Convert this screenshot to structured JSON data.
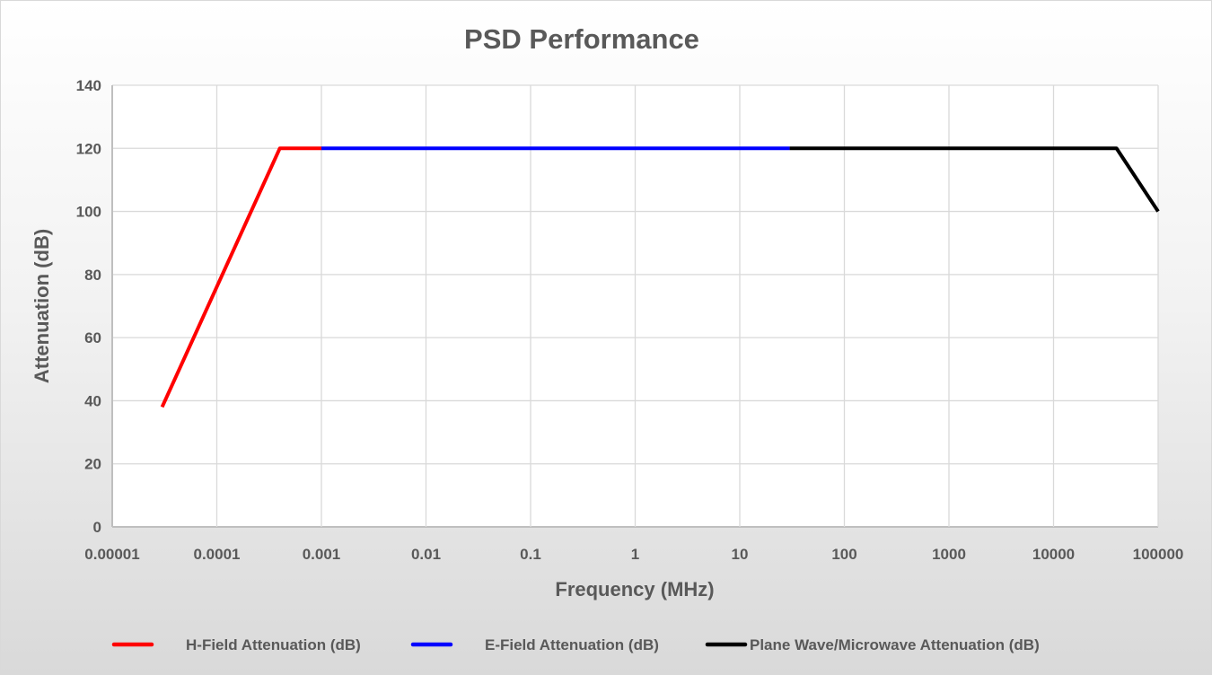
{
  "chart_data": {
    "type": "line",
    "title": "PSD Performance",
    "xlabel": "Frequency (MHz)",
    "ylabel": "Attenuation (dB)",
    "xscale": "log",
    "xlim": [
      1e-05,
      100000
    ],
    "ylim": [
      0,
      140
    ],
    "x_ticks": [
      "0.00001",
      "0.0001",
      "0.001",
      "0.01",
      "0.1",
      "1",
      "10",
      "100",
      "1000",
      "10000",
      "100000"
    ],
    "y_ticks": [
      "0",
      "20",
      "40",
      "60",
      "80",
      "100",
      "120",
      "140"
    ],
    "grid": true,
    "legend_position": "bottom",
    "series": [
      {
        "name": "H-Field Attenuation (dB)",
        "color": "#ff0000",
        "x": [
          3e-05,
          0.0004,
          0.001
        ],
        "y": [
          38,
          120,
          120
        ]
      },
      {
        "name": "E-Field Attenuation (dB)",
        "color": "#0000ff",
        "x": [
          0.001,
          30
        ],
        "y": [
          120,
          120
        ]
      },
      {
        "name": "Plane Wave/Microwave Attenuation (dB)",
        "color": "#000000",
        "x": [
          30,
          40000,
          100000
        ],
        "y": [
          120,
          120,
          100
        ]
      }
    ]
  }
}
